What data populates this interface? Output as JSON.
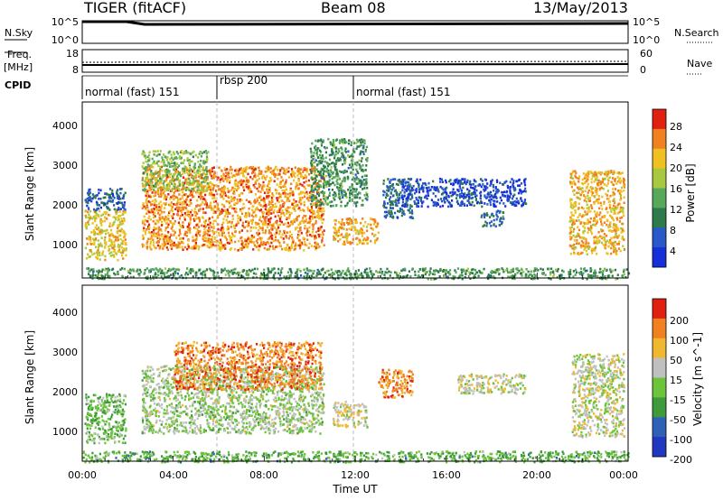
{
  "header": {
    "title": "TIGER (fitACF)",
    "beam": "Beam 08",
    "date": "13/May/2013"
  },
  "status_panel": {
    "nsky_label": "N.Sky",
    "nsky_ticks": [
      "10^5",
      "10^0"
    ],
    "nsearch_label": "N.Search",
    "nsearch_ticks": [
      "10^5",
      "10^0"
    ],
    "freq_label_line1": "Freq.",
    "freq_label_line2": "[MHz]",
    "freq_ticks": [
      "18",
      "8"
    ],
    "nave_label": "Nave",
    "nave_ticks": [
      "60",
      "0"
    ],
    "cpid_label": "CPID",
    "cpid_segments": [
      {
        "label": "normal (fast) 151",
        "start_hour": 0,
        "end_hour": 6
      },
      {
        "label": "rbsp 200",
        "start_hour": 6,
        "end_hour": 12
      },
      {
        "label": "normal (fast) 151",
        "start_hour": 12,
        "end_hour": 24
      }
    ]
  },
  "x_axis": {
    "label": "Time UT",
    "tick_labels": [
      "00:00",
      "04:00",
      "08:00",
      "12:00",
      "16:00",
      "20:00",
      "00:00"
    ]
  },
  "chart_data": [
    {
      "type": "heatmap",
      "name": "power",
      "ylabel": "Slant Range [km]",
      "y_tick_labels": [
        "1000",
        "2000",
        "3000",
        "4000"
      ],
      "xlim_hours": [
        0,
        24
      ],
      "ylim_km": [
        180,
        4600
      ],
      "colorbar": {
        "label": "Power [dB]",
        "tick_labels": [
          "4",
          "8",
          "12",
          "16",
          "20",
          "24",
          "28"
        ],
        "range": [
          0,
          32
        ],
        "colors": [
          "#1430d8",
          "#2a58c8",
          "#2f7a4a",
          "#58a85a",
          "#a8c840",
          "#f0c020",
          "#f08020",
          "#e02010"
        ]
      },
      "regions": [
        {
          "hours": [
            0.1,
            1.9
          ],
          "km": [
            650,
            1900
          ],
          "value": 21
        },
        {
          "hours": [
            0.1,
            1.9
          ],
          "km": [
            1900,
            2450
          ],
          "value": 7
        },
        {
          "hours": [
            2.6,
            10.6
          ],
          "km": [
            900,
            3000
          ],
          "value": 25
        },
        {
          "hours": [
            2.6,
            5.5
          ],
          "km": [
            2400,
            3400
          ],
          "value": 16
        },
        {
          "hours": [
            10.0,
            12.5
          ],
          "km": [
            2000,
            3700
          ],
          "value": 12
        },
        {
          "hours": [
            11.0,
            13.0
          ],
          "km": [
            1050,
            1700
          ],
          "value": 23
        },
        {
          "hours": [
            13.2,
            14.5
          ],
          "km": [
            1700,
            2700
          ],
          "value": 8
        },
        {
          "hours": [
            14.0,
            19.5
          ],
          "km": [
            2000,
            2700
          ],
          "value": 5
        },
        {
          "hours": [
            17.5,
            18.5
          ],
          "km": [
            1500,
            1900
          ],
          "value": 8
        },
        {
          "hours": [
            21.4,
            23.8
          ],
          "km": [
            800,
            2900
          ],
          "value": 23
        },
        {
          "hours": [
            0.0,
            24.0
          ],
          "km": [
            180,
            450
          ],
          "value": 12
        }
      ]
    },
    {
      "type": "heatmap",
      "name": "velocity",
      "ylabel": "Slant Range [km]",
      "y_tick_labels": [
        "1000",
        "2000",
        "3000",
        "4000"
      ],
      "xlim_hours": [
        0,
        24
      ],
      "ylim_km": [
        180,
        4600
      ],
      "colorbar": {
        "label": "Velocity [m s^-1]",
        "tick_labels": [
          "200",
          "100",
          "50",
          "15",
          "-15",
          "-50",
          "-100",
          "-200"
        ],
        "range": [
          -250,
          250
        ],
        "colors": [
          "#2038c0",
          "#2e60b8",
          "#3e9a3a",
          "#6cc43a",
          "#c0c0c0",
          "#f0b830",
          "#f08020",
          "#e02010"
        ]
      },
      "regions": [
        {
          "hours": [
            0.1,
            1.9
          ],
          "km": [
            650,
            1900
          ],
          "value": -40
        },
        {
          "hours": [
            2.6,
            10.6
          ],
          "km": [
            900,
            2600
          ],
          "value": 0
        },
        {
          "hours": [
            4.0,
            10.5
          ],
          "km": [
            2000,
            3200
          ],
          "value": 150
        },
        {
          "hours": [
            11.0,
            12.5
          ],
          "km": [
            1050,
            1700
          ],
          "value": 40
        },
        {
          "hours": [
            13.0,
            14.5
          ],
          "km": [
            1800,
            2500
          ],
          "value": 150
        },
        {
          "hours": [
            16.5,
            19.5
          ],
          "km": [
            1900,
            2400
          ],
          "value": 30
        },
        {
          "hours": [
            21.5,
            23.8
          ],
          "km": [
            800,
            2900
          ],
          "value": 25
        },
        {
          "hours": [
            0.0,
            24.0
          ],
          "km": [
            180,
            450
          ],
          "value": -60
        }
      ]
    }
  ]
}
